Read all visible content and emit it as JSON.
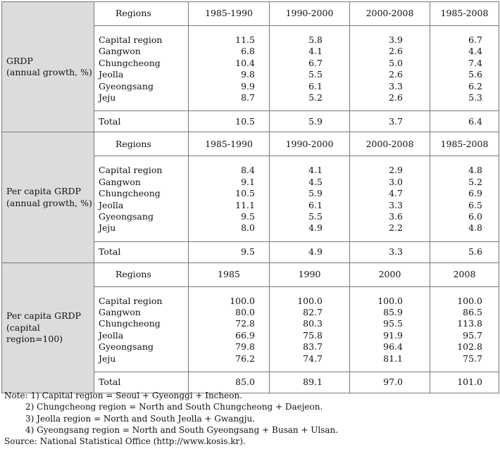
{
  "sections": [
    {
      "label_line1": "GRDP",
      "label_line2": "(annual growth, %)",
      "headers": [
        "Regions",
        "1985-1990",
        "1990-2000",
        "2000-2008",
        "1985-2008"
      ],
      "rows": [
        {
          "region": "Capital region",
          "v": [
            "11.5",
            "5.8",
            "3.9",
            "6.7"
          ]
        },
        {
          "region": "Gangwon",
          "v": [
            "6.8",
            "4.1",
            "2.6",
            "4.4"
          ]
        },
        {
          "region": "Chungcheong",
          "v": [
            "10.4",
            "6.7",
            "5.0",
            "7.4"
          ]
        },
        {
          "region": "Jeolla",
          "v": [
            "9.8",
            "5.5",
            "2.6",
            "5.6"
          ]
        },
        {
          "region": "Gyeongsang",
          "v": [
            "9.9",
            "6.1",
            "3.3",
            "6.2"
          ]
        },
        {
          "region": "Jeju",
          "v": [
            "8.7",
            "5.2",
            "2.6",
            "5.3"
          ]
        }
      ],
      "total": {
        "region": "Total",
        "v": [
          "10.5",
          "5.9",
          "3.7",
          "6.4"
        ]
      }
    },
    {
      "label_line1": "Per capita GRDP",
      "label_line2": "(annual growth, %)",
      "headers": [
        "Regions",
        "1985-1990",
        "1990-2000",
        "2000-2008",
        "1985-2008"
      ],
      "rows": [
        {
          "region": "Capital region",
          "v": [
            "8.4",
            "4.1",
            "2.9",
            "4.8"
          ]
        },
        {
          "region": "Gangwon",
          "v": [
            "9.1",
            "4.5",
            "3.0",
            "5.2"
          ]
        },
        {
          "region": "Chungcheong",
          "v": [
            "10.5",
            "5.9",
            "4.7",
            "6.9"
          ]
        },
        {
          "region": "Jeolla",
          "v": [
            "11.1",
            "6.1",
            "3.3",
            "6.5"
          ]
        },
        {
          "region": "Gyeongsang",
          "v": [
            "9.5",
            "5.5",
            "3.6",
            "6.0"
          ]
        },
        {
          "region": "Jeju",
          "v": [
            "8.0",
            "4.9",
            "2.2",
            "4.8"
          ]
        }
      ],
      "total": {
        "region": "Total",
        "v": [
          "9.5",
          "4.9",
          "3.3",
          "5.6"
        ]
      }
    },
    {
      "label_line1": "Per capita GRDP",
      "label_line2": "(capital region=100)",
      "headers": [
        "Regions",
        "1985",
        "1990",
        "2000",
        "2008"
      ],
      "rows": [
        {
          "region": "Capital region",
          "v": [
            "100.0",
            "100.0",
            "100.0",
            "100.0"
          ]
        },
        {
          "region": "Gangwon",
          "v": [
            "80.0",
            "82.7",
            "85.9",
            "86.5"
          ]
        },
        {
          "region": "Chungcheong",
          "v": [
            "72.8",
            "80.3",
            "95.5",
            "113.8"
          ]
        },
        {
          "region": "Jeolla",
          "v": [
            "66.9",
            "75.8",
            "91.9",
            "95.7"
          ]
        },
        {
          "region": "Gyeongsang",
          "v": [
            "79.8",
            "83.7",
            "96.4",
            "102.8"
          ]
        },
        {
          "region": "Jeju",
          "v": [
            "76.2",
            "74.7",
            "81.1",
            "75.7"
          ]
        }
      ],
      "total": {
        "region": "Total",
        "v": [
          "85.0",
          "89.1",
          "97.0",
          "101.0"
        ]
      }
    }
  ],
  "notes": {
    "line1": "Note: 1) Capital region = Seoul + Gyeonggi + Incheon.",
    "line2": "2) Chungcheong region = North and South Chungcheong + Daejeon.",
    "line3": "3) Jeolla region = North and South Jeolla + Gwangju.",
    "line4": "4) Gyeongsang region = North and South Gyeongsang + Busan + Ulsan.",
    "source": "Source: National Statistical Office (http://www.kosis.kr)."
  }
}
